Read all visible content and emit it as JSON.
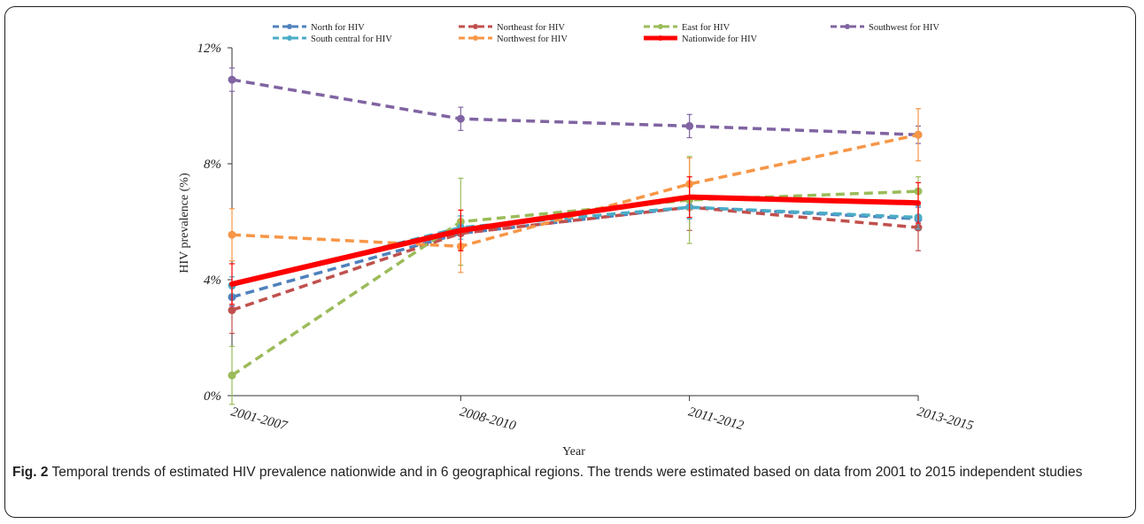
{
  "caption": {
    "label": "Fig. 2",
    "text": "Temporal trends of estimated HIV prevalence nationwide and in 6 geographical regions. The trends were estimated based on data from 2001 to 2015 independent studies"
  },
  "chart_data": {
    "type": "line",
    "title": "",
    "xlabel": "Year",
    "ylabel": "HIV prevalence (%)",
    "categories": [
      "2001-2007",
      "2008-2010",
      "2011-2012",
      "2013-2015"
    ],
    "ylim": [
      0,
      12
    ],
    "yticks": [
      0,
      4,
      8,
      12
    ],
    "ytick_labels": [
      "0%",
      "4%",
      "8%",
      "12%"
    ],
    "legend_position": "top",
    "series": [
      {
        "name": "North for HIV",
        "color": "#4f81bd",
        "dashed": true,
        "values": [
          3.4,
          5.6,
          6.5,
          6.1
        ],
        "err": [
          0.3,
          0.4,
          0.4,
          0.4
        ]
      },
      {
        "name": "Northeast for HIV",
        "color": "#c0504d",
        "dashed": true,
        "values": [
          2.95,
          5.6,
          6.5,
          5.8
        ],
        "err": [
          0.8,
          0.6,
          0.8,
          0.8
        ]
      },
      {
        "name": "East for HIV",
        "color": "#9bbb59",
        "dashed": true,
        "values": [
          0.7,
          6.0,
          6.75,
          7.05
        ],
        "err": [
          1.0,
          1.5,
          1.5,
          0.5
        ]
      },
      {
        "name": "Southwest for HIV",
        "color": "#8064a2",
        "dashed": true,
        "values": [
          10.9,
          9.55,
          9.3,
          9.0
        ],
        "err": [
          0.4,
          0.4,
          0.4,
          0.3
        ]
      },
      {
        "name": "South central for HIV",
        "color": "#4bacc6",
        "dashed": true,
        "values": [
          3.8,
          5.8,
          6.5,
          6.15
        ],
        "err": [
          0.3,
          0.4,
          0.4,
          0.4
        ]
      },
      {
        "name": "Northwest for HIV",
        "color": "#f79646",
        "dashed": true,
        "values": [
          5.55,
          5.15,
          7.3,
          9.0
        ],
        "err": [
          0.9,
          0.9,
          0.9,
          0.9
        ]
      },
      {
        "name": "Nationwide for HIV",
        "color": "#ff0000",
        "dashed": false,
        "values": [
          3.85,
          5.7,
          6.85,
          6.65
        ],
        "err": [
          0.7,
          0.7,
          0.7,
          0.7
        ]
      }
    ]
  }
}
